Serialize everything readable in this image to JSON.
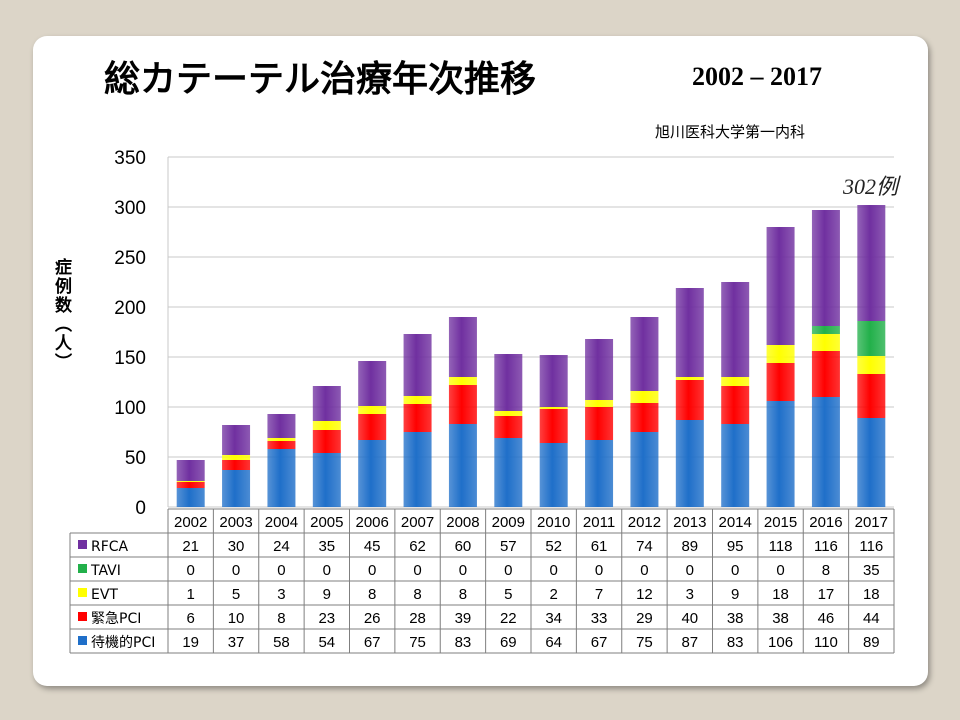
{
  "title": "総カテーテル治療年次推移",
  "year_range": "2002 – 2017",
  "source": "旭川医科大学第一内科",
  "annotation": "302例",
  "chart_data": {
    "type": "bar",
    "stacked": true,
    "ylabel": "症例数（人）",
    "ylim": [
      0,
      350
    ],
    "yticks": [
      0,
      50,
      100,
      150,
      200,
      250,
      300,
      350
    ],
    "grid": true,
    "categories": [
      "2002",
      "2003",
      "2004",
      "2005",
      "2006",
      "2007",
      "2008",
      "2009",
      "2010",
      "2011",
      "2012",
      "2013",
      "2014",
      "2015",
      "2016",
      "2017"
    ],
    "series": [
      {
        "name": "待機的PCI",
        "color": "#1f6fc9",
        "values": [
          19,
          37,
          58,
          54,
          67,
          75,
          83,
          69,
          64,
          67,
          75,
          87,
          83,
          106,
          110,
          89
        ]
      },
      {
        "name": "緊急PCI",
        "color": "#ff0000",
        "values": [
          6,
          10,
          8,
          23,
          26,
          28,
          39,
          22,
          34,
          33,
          29,
          40,
          38,
          38,
          46,
          44
        ]
      },
      {
        "name": "EVT",
        "color": "#ffff00",
        "values": [
          1,
          5,
          3,
          9,
          8,
          8,
          8,
          5,
          2,
          7,
          12,
          3,
          9,
          18,
          17,
          18
        ]
      },
      {
        "name": "TAVI",
        "color": "#22b04a",
        "values": [
          0,
          0,
          0,
          0,
          0,
          0,
          0,
          0,
          0,
          0,
          0,
          0,
          0,
          0,
          8,
          35
        ]
      },
      {
        "name": "RFCA",
        "color": "#7030a0",
        "values": [
          21,
          30,
          24,
          35,
          45,
          62,
          60,
          57,
          52,
          61,
          74,
          89,
          95,
          118,
          116,
          116
        ]
      }
    ],
    "table_row_order": [
      "RFCA",
      "TAVI",
      "EVT",
      "緊急PCI",
      "待機的PCI"
    ]
  }
}
